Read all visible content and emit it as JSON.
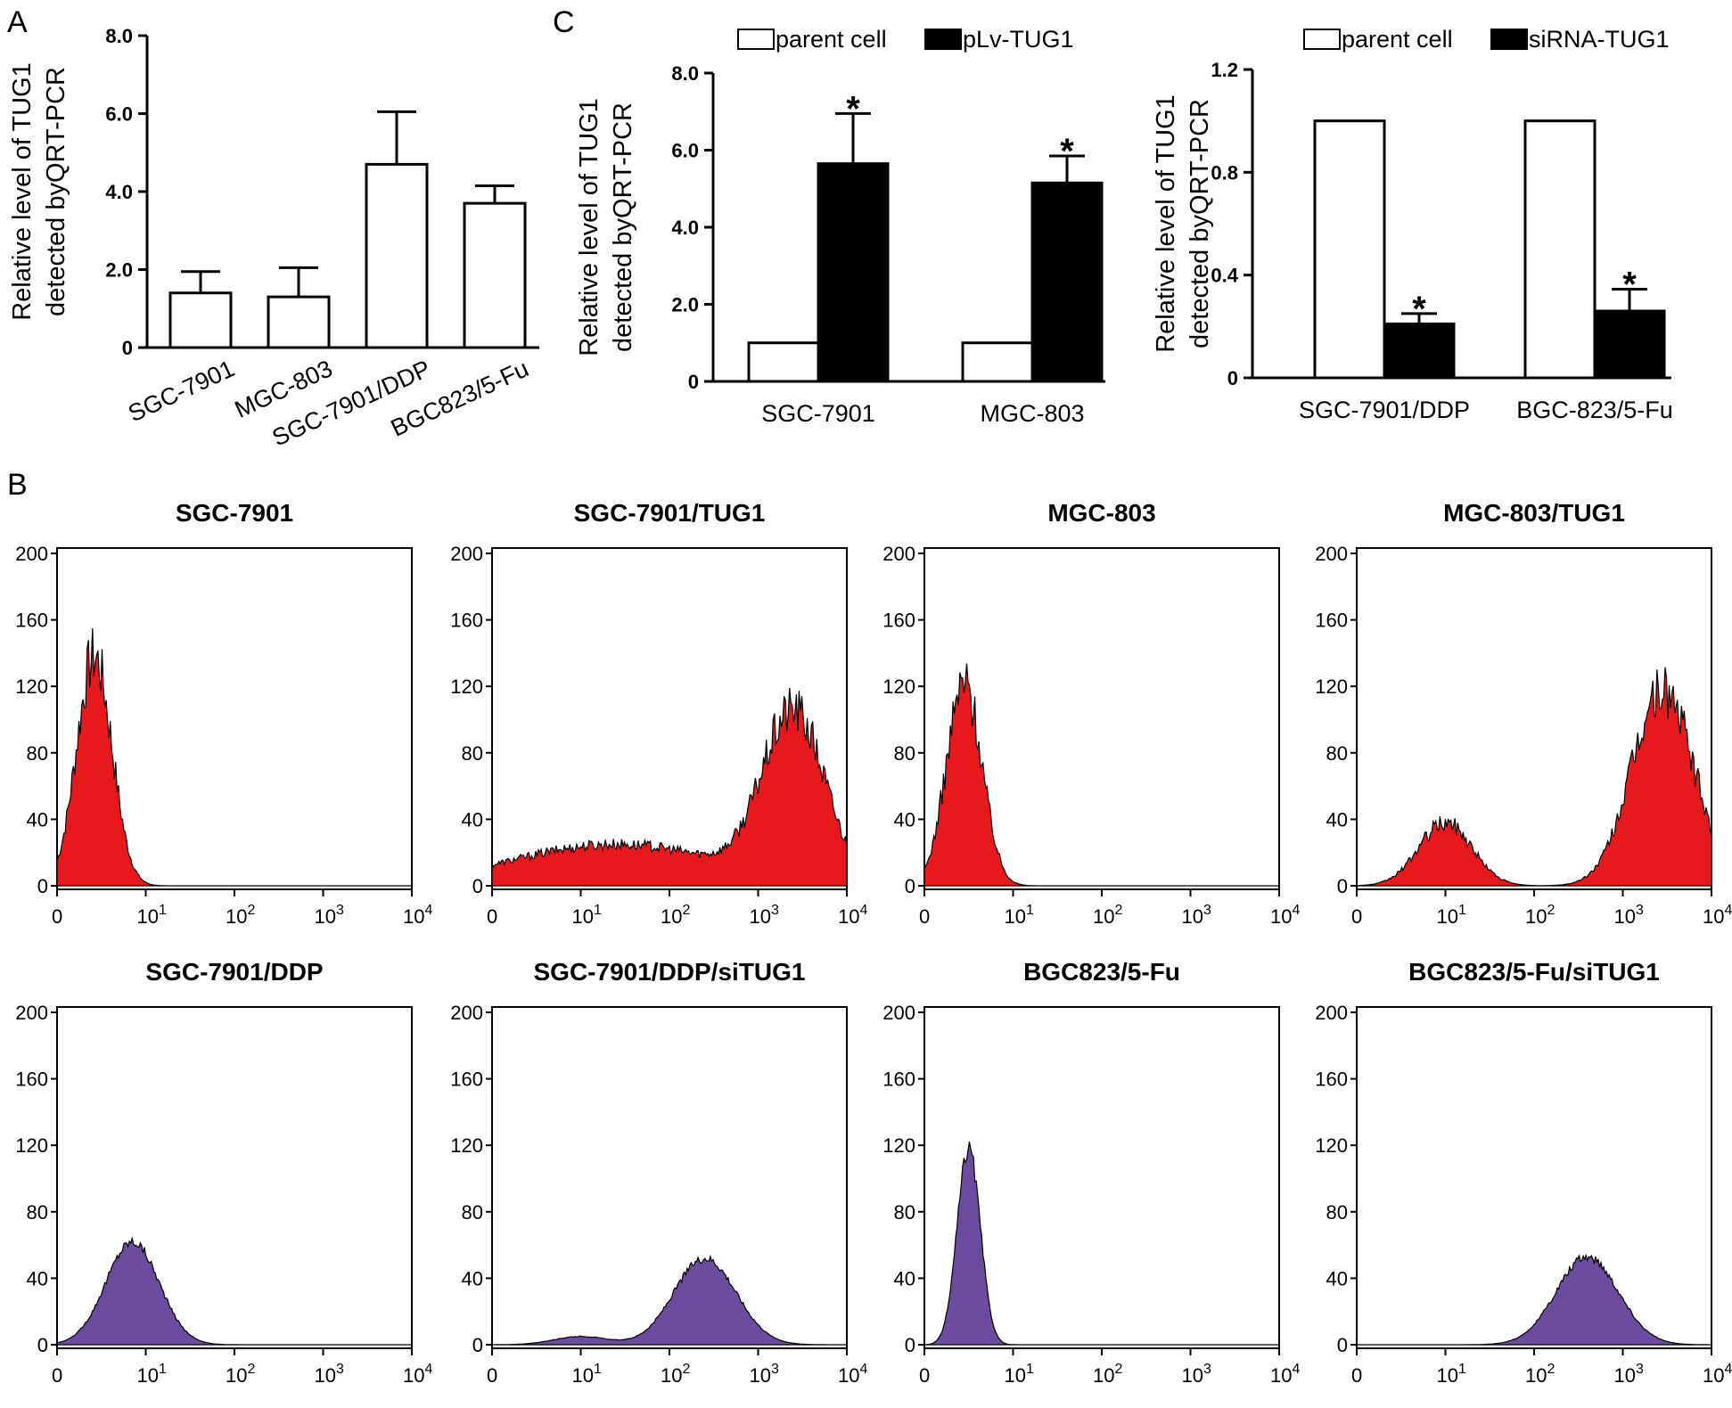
{
  "panel_labels": {
    "a": "A",
    "b": "B",
    "c": "C"
  },
  "colors": {
    "red_fill": "#e8191c",
    "purple_fill": "#6b4b9e",
    "open_bar": "#ffffff",
    "solid_bar": "#000000"
  },
  "chart_data": [
    {
      "id": "panelA",
      "type": "bar",
      "categories": [
        "SGC-7901",
        "MGC-803",
        "SGC-7901/DDP",
        "BGC823/5-Fu"
      ],
      "values": [
        1.4,
        1.3,
        4.7,
        3.7
      ],
      "errors": [
        0.55,
        0.75,
        1.35,
        0.45
      ],
      "ylabel_line1": "Relative level of TUG1",
      "ylabel_line2": "detected byQRT-PCR",
      "ylim": [
        0,
        8
      ],
      "yticks": [
        "0",
        "2.0",
        "4.0",
        "6.0",
        "8.0"
      ]
    },
    {
      "id": "panelC1",
      "type": "bar",
      "categories": [
        "SGC-7901",
        "MGC-803"
      ],
      "series": [
        {
          "name": "parent cell",
          "values": [
            1.0,
            1.0
          ],
          "errors": [
            0,
            0
          ]
        },
        {
          "name": "pLv-TUG1",
          "values": [
            5.65,
            5.15
          ],
          "errors": [
            1.3,
            0.7
          ]
        }
      ],
      "annotations": [
        "*",
        "*"
      ],
      "ylabel_line1": "Relative level of TUG1",
      "ylabel_line2": "detected byQRT-PCR",
      "ylim": [
        0,
        8
      ],
      "yticks": [
        "0",
        "2.0",
        "4.0",
        "6.0",
        "8.0"
      ]
    },
    {
      "id": "panelC2",
      "type": "bar",
      "categories": [
        "SGC-7901/DDP",
        "BGC-823/5-Fu"
      ],
      "series": [
        {
          "name": "parent cell",
          "values": [
            1.0,
            1.0
          ],
          "errors": [
            0,
            0
          ]
        },
        {
          "name": "siRNA-TUG1",
          "values": [
            0.21,
            0.26
          ],
          "errors": [
            0.04,
            0.085
          ]
        }
      ],
      "annotations": [
        "*",
        "*"
      ],
      "ylabel_line1": "Relative level of TUG1",
      "ylabel_line2": "detected byQRT-PCR",
      "ylim": [
        0,
        1.2
      ],
      "yticks": [
        "0",
        "0.4",
        "0.8",
        "1.2"
      ]
    },
    {
      "id": "panelB",
      "type": "histogram",
      "xscale": "log",
      "xlim": [
        1,
        10000
      ],
      "ylim": [
        0,
        200
      ],
      "yticks": [
        "0",
        "40",
        "80",
        "120",
        "160",
        "200"
      ],
      "xtick_base": "10",
      "xticks": [
        {
          "base": "0",
          "exp": ""
        },
        {
          "base": "10",
          "exp": "1"
        },
        {
          "base": "10",
          "exp": "2"
        },
        {
          "base": "10",
          "exp": "3"
        },
        {
          "base": "10",
          "exp": "4"
        }
      ],
      "panels": [
        {
          "title": "SGC-7901",
          "color": "red",
          "peaks": [
            {
              "center_log": 0.42,
              "width": 0.2,
              "height": 138
            }
          ]
        },
        {
          "title": "SGC-7901/TUG1",
          "color": "red",
          "peaks": [
            {
              "center_log": 1.4,
              "width": 1.2,
              "height": 25
            },
            {
              "center_log": 3.4,
              "width": 0.35,
              "height": 100
            }
          ]
        },
        {
          "title": "MGC-803",
          "color": "red",
          "peaks": [
            {
              "center_log": 0.45,
              "width": 0.2,
              "height": 122
            }
          ]
        },
        {
          "title": "MGC-803/TUG1",
          "color": "red",
          "peaks": [
            {
              "center_log": 1.0,
              "width": 0.3,
              "height": 38
            },
            {
              "center_log": 3.45,
              "width": 0.35,
              "height": 118
            }
          ]
        },
        {
          "title": "SGC-7901/DDP",
          "color": "purple",
          "peaks": [
            {
              "center_log": 0.85,
              "width": 0.3,
              "height": 62
            }
          ]
        },
        {
          "title": "SGC-7901/DDP/siTUG1",
          "color": "purple",
          "peaks": [
            {
              "center_log": 1.0,
              "width": 0.3,
              "height": 5
            },
            {
              "center_log": 2.4,
              "width": 0.35,
              "height": 52
            }
          ]
        },
        {
          "title": "BGC823/5-Fu",
          "color": "purple",
          "peaks": [
            {
              "center_log": 0.5,
              "width": 0.13,
              "height": 118
            }
          ]
        },
        {
          "title": "BGC823/5-Fu/siTUG1",
          "color": "purple",
          "peaks": [
            {
              "center_log": 2.6,
              "width": 0.35,
              "height": 53
            }
          ]
        }
      ]
    }
  ]
}
